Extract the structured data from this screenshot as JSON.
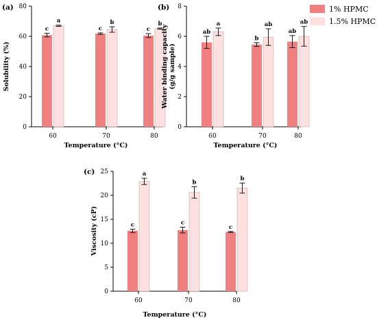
{
  "legend": {
    "entries": [
      {
        "label": "1% HPMC",
        "color": "#f08080"
      },
      {
        "label": "1.5% HPMC",
        "color": "#fde1e1"
      }
    ]
  },
  "chart_data": [
    {
      "type": "bar",
      "panel_label": "(a)",
      "categories": [
        "60",
        "70",
        "80"
      ],
      "series": [
        {
          "name": "1% HPMC",
          "values": [
            60.8,
            61.8,
            60.5
          ],
          "errors": [
            1.2,
            0.5,
            1.3
          ],
          "letters": [
            "c",
            "c",
            "c"
          ]
        },
        {
          "name": "1.5% HPMC",
          "values": [
            67.0,
            64.5,
            65.1
          ],
          "errors": [
            0.4,
            1.8,
            0.4
          ],
          "letters": [
            "a",
            "b",
            "b"
          ]
        }
      ],
      "xlabel": "Temperature (°C)",
      "ylabel": "Solubility (%)",
      "ylim": [
        0,
        80
      ],
      "yticks": [
        "0",
        "20",
        "40",
        "60",
        "80"
      ],
      "grid": false,
      "legend": "outside-right"
    },
    {
      "type": "bar",
      "panel_label": "(b)",
      "categories": [
        "60",
        "70",
        "80"
      ],
      "series": [
        {
          "name": "1% HPMC",
          "values": [
            5.6,
            5.45,
            5.65
          ],
          "errors": [
            0.4,
            0.12,
            0.4
          ],
          "letters": [
            "ab",
            "b",
            "ab"
          ]
        },
        {
          "name": "1.5% HPMC",
          "values": [
            6.3,
            5.95,
            6.0
          ],
          "errors": [
            0.25,
            0.55,
            0.65
          ],
          "letters": [
            "a",
            "ab",
            "ab"
          ]
        }
      ],
      "xlabel": "Temperature (°C)",
      "ylabel": "Water binding capacity",
      "ylabel2": "(g/g sample)",
      "ylim": [
        0,
        8
      ],
      "yticks": [
        "0",
        "2",
        "4",
        "6",
        "8"
      ],
      "grid": false,
      "legend": "outside-right"
    },
    {
      "type": "bar",
      "panel_label": "(c)",
      "categories": [
        "60",
        "70",
        "80"
      ],
      "series": [
        {
          "name": "1% HPMC",
          "values": [
            12.6,
            12.75,
            12.35
          ],
          "errors": [
            0.35,
            0.6,
            0.1
          ],
          "letters": [
            "c",
            "c",
            "c"
          ]
        },
        {
          "name": "1.5% HPMC",
          "values": [
            22.9,
            20.6,
            21.5
          ],
          "errors": [
            0.65,
            1.2,
            1.05
          ],
          "letters": [
            "a",
            "b",
            "b"
          ]
        }
      ],
      "xlabel": "Temperature (°C)",
      "ylabel": "Viscosity (cP)",
      "ylim": [
        0,
        25
      ],
      "yticks": [
        "0",
        "5",
        "10",
        "15",
        "20",
        "25"
      ],
      "grid": false,
      "legend": "outside-right"
    }
  ]
}
